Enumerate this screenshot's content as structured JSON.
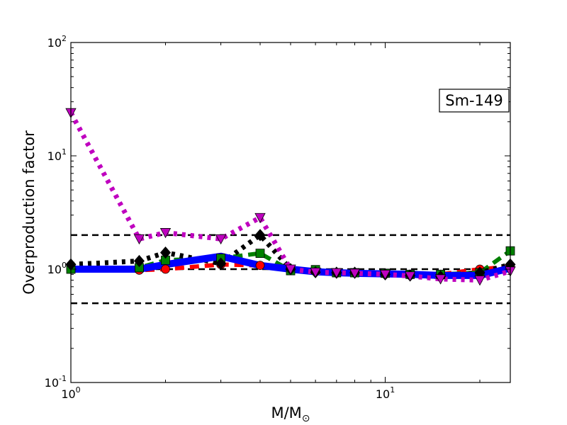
{
  "chart_data": {
    "type": "line",
    "title": "",
    "xlabel": "M/M",
    "xlabel_sub": "⊙",
    "ylabel": "Overproduction factor",
    "xscale": "log",
    "yscale": "log",
    "xlim": [
      1,
      25
    ],
    "ylim": [
      0.1,
      100
    ],
    "grid": false,
    "x_ticks": [
      {
        "value": 1,
        "base": "10",
        "exp": "0"
      },
      {
        "value": 10,
        "base": "10",
        "exp": "1"
      }
    ],
    "y_ticks": [
      {
        "value": 0.1,
        "base": "10",
        "exp": "-1"
      },
      {
        "value": 1,
        "base": "10",
        "exp": "0"
      },
      {
        "value": 10,
        "base": "10",
        "exp": "1"
      },
      {
        "value": 100,
        "base": "10",
        "exp": "2"
      }
    ],
    "annotation": "Sm-149",
    "reference_lines": [
      {
        "y": 2.0,
        "color": "#000000"
      },
      {
        "y": 1.0,
        "color": "#000000"
      },
      {
        "y": 0.5,
        "color": "#000000"
      }
    ],
    "series": [
      {
        "color": "#ff0000",
        "style": "dashed",
        "marker": "circle",
        "x": [
          1.0,
          1.65,
          2.0,
          3.0,
          4.0,
          5.0,
          6.0,
          7.0,
          8.0,
          10.0,
          12.0,
          15.0,
          20.0,
          25.0
        ],
        "y": [
          1.0,
          0.98,
          1.0,
          1.1,
          1.08,
          1.0,
          0.96,
          0.93,
          0.93,
          0.92,
          0.9,
          0.9,
          1.0,
          1.05
        ]
      },
      {
        "color": "#008000",
        "style": "dashed",
        "marker": "square",
        "x": [
          1.0,
          1.65,
          2.0,
          3.0,
          4.0,
          5.0,
          6.0,
          7.0,
          8.0,
          10.0,
          12.0,
          15.0,
          20.0,
          25.0
        ],
        "y": [
          1.0,
          1.03,
          1.2,
          1.25,
          1.38,
          0.97,
          0.99,
          0.93,
          0.93,
          0.92,
          0.9,
          0.9,
          0.93,
          1.45
        ]
      },
      {
        "color": "#000000",
        "style": "dotted",
        "marker": "diamond",
        "x": [
          1.0,
          1.65,
          2.0,
          3.0,
          4.0,
          5.0,
          6.0,
          7.0,
          8.0,
          10.0,
          12.0,
          15.0,
          20.0,
          25.0
        ],
        "y": [
          1.1,
          1.18,
          1.4,
          1.12,
          2.0,
          1.0,
          0.94,
          0.93,
          0.93,
          0.9,
          0.88,
          0.86,
          0.93,
          1.1
        ]
      },
      {
        "color": "#0000ff",
        "style": "solid",
        "marker": "none",
        "x": [
          1.0,
          1.65,
          2.0,
          3.0,
          4.0,
          5.0,
          6.0,
          7.0,
          8.0,
          10.0,
          12.0,
          15.0,
          20.0,
          25.0
        ],
        "y": [
          1.0,
          1.0,
          1.1,
          1.3,
          1.08,
          1.0,
          0.95,
          0.93,
          0.92,
          0.91,
          0.9,
          0.88,
          0.88,
          1.02
        ]
      },
      {
        "color": "#bf00bf",
        "style": "dotted",
        "marker": "triangle-down",
        "x": [
          1.0,
          1.65,
          2.0,
          3.0,
          4.0,
          5.0,
          6.0,
          7.0,
          8.0,
          10.0,
          12.0,
          15.0,
          20.0,
          25.0
        ],
        "y": [
          24.0,
          1.85,
          2.1,
          1.85,
          2.85,
          1.0,
          0.94,
          0.93,
          0.92,
          0.9,
          0.87,
          0.82,
          0.8,
          0.96
        ]
      }
    ]
  }
}
